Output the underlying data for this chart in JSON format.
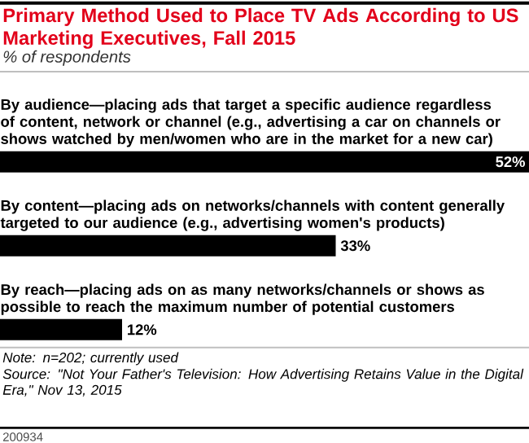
{
  "chart_data": {
    "type": "bar",
    "orientation": "horizontal",
    "title": "Primary Method Used to Place TV Ads According to US Marketing Executives, Fall 2015",
    "subtitle": "% of respondents",
    "categories": [
      "By audience—placing ads that target a specific audience regardless of content, network or channel (e.g., advertising a car on channels or shows watched by men/women who are in the market for a new car)",
      "By content—placing ads on networks/channels with content generally targeted to our audience (e.g., advertising women's products)",
      "By reach—placing ads on as many networks/channels or shows as possible to reach the maximum number of potential customers"
    ],
    "values": [
      52,
      33,
      12
    ],
    "value_labels": [
      "52%",
      "33%",
      "12%"
    ],
    "color": "#000000",
    "annotations": [
      "Note: n=202; currently used",
      "Source: \"Not Your Father's Television: How Advertising Retains Value in the Digital Era,\" Nov 13, 2015",
      "200934"
    ]
  }
}
